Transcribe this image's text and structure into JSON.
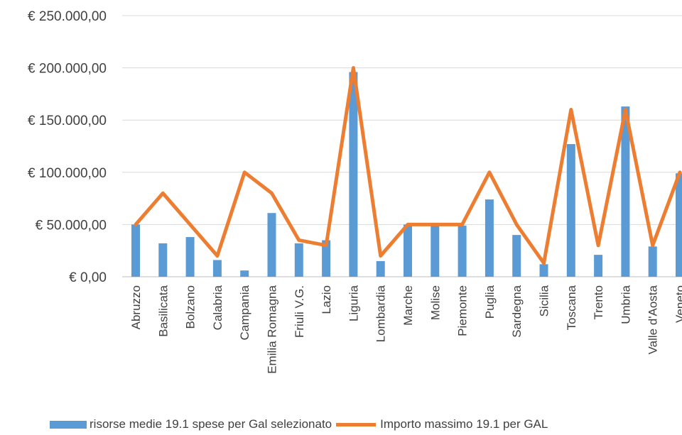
{
  "chart_data": {
    "type": "bar",
    "title": "",
    "categories": [
      "Abruzzo",
      "Basilicata",
      "Bolzano",
      "Calabria",
      "Campania",
      "Emilia Romagna",
      "Friuli V.G.",
      "Lazio",
      "Liguria",
      "Lombardia",
      "Marche",
      "Molise",
      "Piemonte",
      "Puglia",
      "Sardegna",
      "Sicilia",
      "Toscana",
      "Trento",
      "Umbria",
      "Valle d'Aosta",
      "Veneto"
    ],
    "series": [
      {
        "name": "risorse medie 19.1 spese per Gal selezionato",
        "type": "bar",
        "color": "#5B9BD5",
        "values": [
          50000,
          32000,
          38000,
          16000,
          6000,
          61000,
          32000,
          35000,
          196000,
          15000,
          50000,
          50000,
          49000,
          74000,
          40000,
          12000,
          127000,
          21000,
          163000,
          29000,
          99000
        ]
      },
      {
        "name": "Importo massimo 19.1  per GAL",
        "type": "line",
        "color": "#ED7D31",
        "values": [
          50000,
          80000,
          50000,
          20000,
          100000,
          80000,
          35000,
          30000,
          200000,
          20000,
          50000,
          50000,
          50000,
          100000,
          50000,
          13000,
          160000,
          30000,
          160000,
          30000,
          100000
        ]
      }
    ],
    "yticks": [
      "€ 0,00",
      "€ 50.000,00",
      "€ 100.000,00",
      "€ 150.000,00",
      "€ 200.000,00",
      "€ 250.000,00"
    ],
    "ylim": [
      0,
      250000
    ],
    "grid": true,
    "legend_position": "bottom"
  }
}
